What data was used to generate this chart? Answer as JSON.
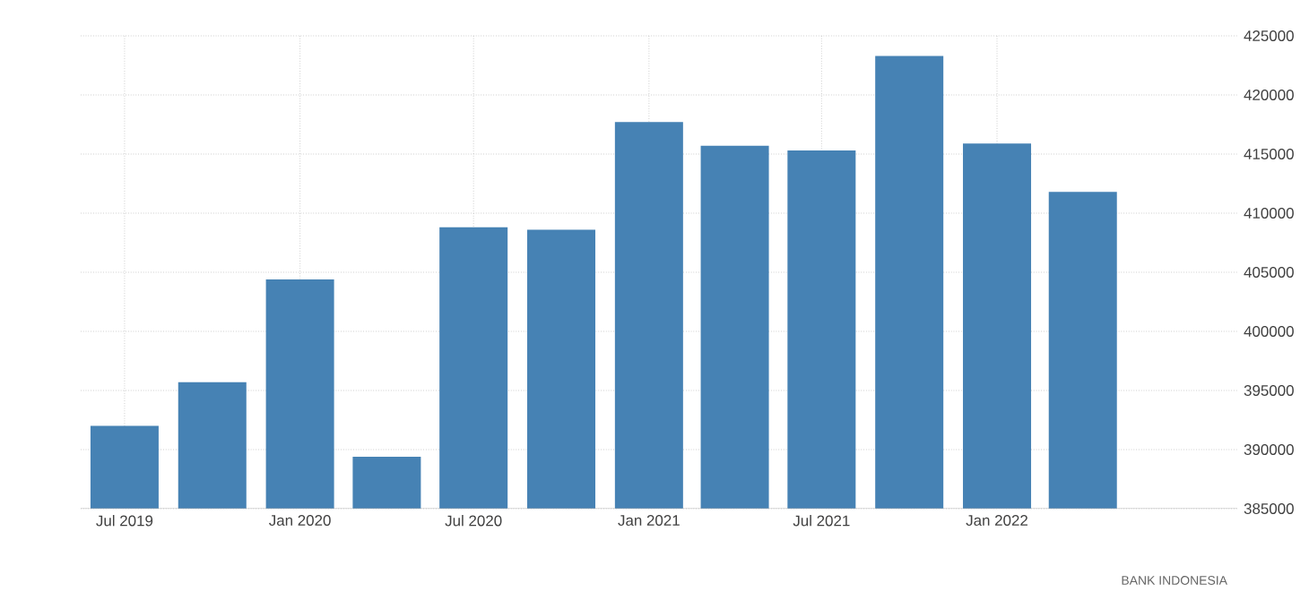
{
  "chart_data": {
    "type": "bar",
    "x": [
      "2019-07",
      "2019-10",
      "2020-01",
      "2020-04",
      "2020-07",
      "2020-10",
      "2021-01",
      "2021-04",
      "2021-07",
      "2021-10",
      "2022-01",
      "2022-04"
    ],
    "values": [
      392000,
      395700,
      404400,
      389400,
      408800,
      408600,
      417700,
      415700,
      415300,
      423300,
      415900,
      411800
    ],
    "color": "#4682b4",
    "xlim": [
      "2019-05-16",
      "2022-09-10"
    ],
    "xticks": [
      {
        "value": "2019-07",
        "label": "Jul 2019"
      },
      {
        "value": "2020-01",
        "label": "Jan 2020"
      },
      {
        "value": "2020-07",
        "label": "Jul 2020"
      },
      {
        "value": "2021-01",
        "label": "Jan 2021"
      },
      {
        "value": "2021-07",
        "label": "Jul 2021"
      },
      {
        "value": "2022-01",
        "label": "Jan 2022"
      }
    ],
    "ylim": [
      385000,
      425000
    ],
    "yticks": [
      385000,
      390000,
      395000,
      400000,
      405000,
      410000,
      415000,
      420000,
      425000
    ],
    "grid": true,
    "annotations": [
      "BANK INDONESIA"
    ]
  }
}
